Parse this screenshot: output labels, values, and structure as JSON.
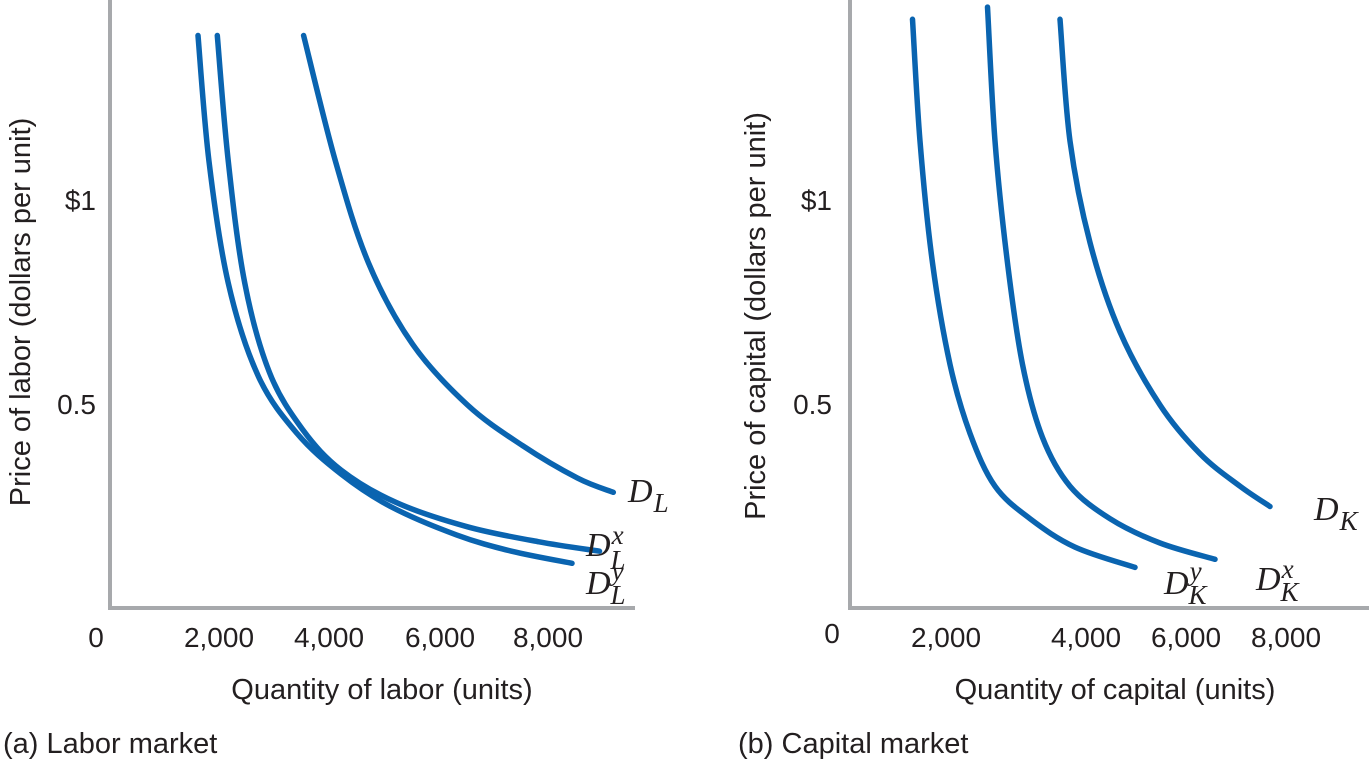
{
  "chart_data": [
    {
      "type": "line",
      "caption": "(a) Labor market",
      "xlabel": "Quantity of labor (units)",
      "ylabel": "Price of labor (dollars per unit)",
      "xlim": [
        0,
        10000
      ],
      "ylim": [
        0,
        1.5
      ],
      "origin_label": "0",
      "xticks": [
        {
          "value": 2000,
          "label": "2,000"
        },
        {
          "value": 4000,
          "label": "4,000"
        },
        {
          "value": 6000,
          "label": "6,000"
        },
        {
          "value": 8000,
          "label": "8,000"
        }
      ],
      "yticks": [
        {
          "value": 0.5,
          "label": "0.5"
        },
        {
          "value": 1,
          "label": "$1"
        }
      ],
      "grid": false,
      "color": "#0a64b0",
      "series": [
        {
          "name": "D_L",
          "label_main": "D",
          "label_sub": "L",
          "label_sup": "",
          "points": [
            [
              3520,
              1.41
            ],
            [
              4100,
              1.1
            ],
            [
              4700,
              0.85
            ],
            [
              5500,
              0.65
            ],
            [
              6500,
              0.5
            ],
            [
              7500,
              0.4
            ],
            [
              8500,
              0.32
            ],
            [
              9150,
              0.285
            ]
          ]
        },
        {
          "name": "D_L^x",
          "label_main": "D",
          "label_sub": "L",
          "label_sup": "x",
          "points": [
            [
              1950,
              1.41
            ],
            [
              2150,
              1.1
            ],
            [
              2450,
              0.8
            ],
            [
              2900,
              0.58
            ],
            [
              3500,
              0.44
            ],
            [
              4200,
              0.34
            ],
            [
              5200,
              0.26
            ],
            [
              6500,
              0.2
            ],
            [
              7800,
              0.163
            ],
            [
              8900,
              0.14
            ]
          ]
        },
        {
          "name": "D_L^y",
          "label_main": "D",
          "label_sub": "L",
          "label_sup": "y",
          "points": [
            [
              1600,
              1.41
            ],
            [
              1800,
              1.1
            ],
            [
              2150,
              0.8
            ],
            [
              2700,
              0.57
            ],
            [
              3400,
              0.43
            ],
            [
              4200,
              0.33
            ],
            [
              5100,
              0.25
            ],
            [
              6300,
              0.18
            ],
            [
              7300,
              0.14
            ],
            [
              8400,
              0.11
            ]
          ]
        }
      ]
    },
    {
      "type": "line",
      "caption": "(b) Capital market",
      "xlabel": "Quantity of capital (units)",
      "ylabel": "Price of capital (dollars per unit)",
      "xlim": [
        0,
        9000
      ],
      "ylim": [
        0,
        1.5
      ],
      "origin_label": "0",
      "xticks": [
        {
          "value": 2000,
          "label": "2,000"
        },
        {
          "value": 4000,
          "label": "4,000"
        },
        {
          "value": 6000,
          "label": "6,000"
        },
        {
          "value": 8000,
          "label": "8,000"
        }
      ],
      "yticks": [
        {
          "value": 0.5,
          "label": "0.5"
        },
        {
          "value": 1,
          "label": "$1"
        }
      ],
      "grid": false,
      "color": "#0a64b0",
      "series": [
        {
          "name": "D_K",
          "label_main": "D",
          "label_sub": "K",
          "label_sup": "",
          "points": [
            [
              4200,
              1.45
            ],
            [
              4400,
              1.15
            ],
            [
              4800,
              0.9
            ],
            [
              5400,
              0.68
            ],
            [
              6200,
              0.5
            ],
            [
              7000,
              0.38
            ],
            [
              7800,
              0.3
            ],
            [
              8400,
              0.25
            ]
          ]
        },
        {
          "name": "D_K^x",
          "label_main": "D",
          "label_sub": "K",
          "label_sup": "x",
          "points": [
            [
              2750,
              1.48
            ],
            [
              2900,
              1.15
            ],
            [
              3150,
              0.85
            ],
            [
              3450,
              0.6
            ],
            [
              3850,
              0.42
            ],
            [
              4400,
              0.3
            ],
            [
              5200,
              0.22
            ],
            [
              6200,
              0.16
            ],
            [
              7300,
              0.12
            ]
          ]
        },
        {
          "name": "D_K^y",
          "label_main": "D",
          "label_sub": "K",
          "label_sup": "y",
          "points": [
            [
              1250,
              1.45
            ],
            [
              1400,
              1.15
            ],
            [
              1650,
              0.85
            ],
            [
              2000,
              0.6
            ],
            [
              2400,
              0.43
            ],
            [
              2900,
              0.3
            ],
            [
              3600,
              0.22
            ],
            [
              4500,
              0.15
            ],
            [
              5700,
              0.1
            ]
          ]
        }
      ]
    }
  ]
}
